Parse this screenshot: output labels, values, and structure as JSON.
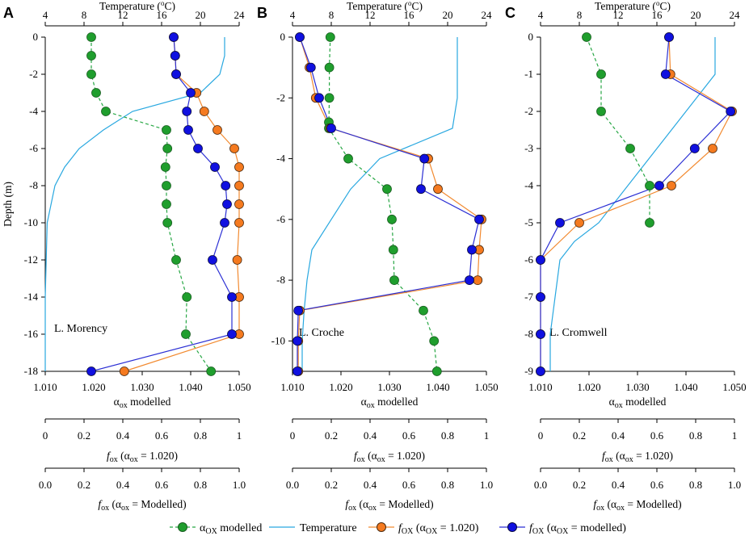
{
  "colors": {
    "alpha": "#1f9e2d",
    "alpha_line": "#28a745",
    "temperature": "#29a8e0",
    "fox020": "#f57a1f",
    "fox020_line": "#f28a30",
    "foxmod": "#1010e0",
    "foxmod_line": "#2b2fd4",
    "axis": "#000000"
  },
  "shared": {
    "ylabel": "Depth (m)",
    "top_axis_title": "Temperature (",
    "top_axis_unit_o": "o",
    "top_axis_unit_tail": "C)",
    "temp_ticks": [
      "4",
      "8",
      "12",
      "16",
      "20",
      "24"
    ],
    "alpha_ticks": [
      "1.010",
      "1.020",
      "1.030",
      "1.040",
      "1.050"
    ],
    "alpha_axis_title": "α",
    "alpha_axis_sub": "ox",
    "alpha_axis_tail": " modelled",
    "fox020_ticks": [
      "0",
      "0.2",
      "0.4",
      "0.6",
      "0.8",
      "1"
    ],
    "fox020_title_f": "f",
    "fox020_title_sub": "ox",
    "fox020_title_tail_a": " (α",
    "fox020_title_tail_sub": "ox",
    "fox020_title_tail_b": " = 1.020)",
    "foxmod_ticks": [
      "0.0",
      "0.2",
      "0.4",
      "0.6",
      "0.8",
      "1.0"
    ],
    "foxmod_title_f": "f",
    "foxmod_title_sub": "ox",
    "foxmod_title_tail_a": " (α",
    "foxmod_title_tail_sub": "ox",
    "foxmod_title_tail_b": " = Modelled)"
  },
  "legend": {
    "alpha": {
      "main": "α",
      "sub": "OX",
      "tail": " modelled"
    },
    "temperature": {
      "main": "Temperature"
    },
    "fox020": {
      "f": "f",
      "sub": "OX",
      "tail_a": " (α",
      "tail_sub": "OX",
      "tail_b": " = 1.020)"
    },
    "foxmod": {
      "f": "f",
      "sub": "OX",
      "tail_a": " (α",
      "tail_sub": "OX",
      "tail_b": " = modelled)"
    }
  },
  "chart_data": [
    {
      "panel": "A",
      "lake": "L. Morency",
      "type": "line",
      "ylim": [
        -18,
        0
      ],
      "yticks": [
        0,
        -2,
        -4,
        -6,
        -8,
        -10,
        -12,
        -14,
        -16,
        -18
      ],
      "ytick_labels": [
        "0",
        "-2",
        "-4",
        "-6",
        "-8",
        "-10",
        "-12",
        "-14",
        "-16",
        "-18"
      ],
      "xlim_alpha": [
        1.01,
        1.05
      ],
      "xlim_temp": [
        4,
        24
      ],
      "series": [
        {
          "name": "α_ox modelled",
          "x": [
            1.0195,
            1.0195,
            1.0195,
            1.0205,
            1.0225,
            1.035,
            1.0352,
            1.0348,
            1.035,
            1.035,
            1.0352,
            1.037,
            1.0392,
            1.039,
            1.0442
          ],
          "depth": [
            0,
            -1,
            -2,
            -3,
            -4,
            -5,
            -6,
            -7,
            -8,
            -9,
            -10,
            -12,
            -14,
            -16,
            -18
          ]
        },
        {
          "name": "Temperature",
          "x": [
            22.5,
            22.5,
            22.0,
            20.0,
            13.0,
            10.0,
            7.5,
            6.0,
            5.0,
            4.2,
            4.0,
            4.0
          ],
          "depth": [
            0,
            -1,
            -2,
            -3,
            -4,
            -5,
            -6,
            -7,
            -8,
            -10,
            -14,
            -18
          ]
        },
        {
          "name": "f_ox (α_ox = 1.020)",
          "x": [
            1.0365,
            1.0368,
            1.037,
            1.0412,
            1.0428,
            1.0455,
            1.049,
            1.05,
            1.05,
            1.05,
            1.05,
            1.0496,
            1.05,
            1.05,
            1.0263
          ],
          "depth": [
            0,
            -1,
            -2,
            -3,
            -4,
            -5,
            -6,
            -7,
            -8,
            -9,
            -10,
            -12,
            -14,
            -16,
            -18
          ]
        },
        {
          "name": "f_ox (α_ox = modelled)",
          "x": [
            1.0365,
            1.0368,
            1.037,
            1.04,
            1.0392,
            1.0395,
            1.0415,
            1.045,
            1.0472,
            1.0475,
            1.047,
            1.0445,
            1.0485,
            1.0485,
            1.0195
          ],
          "depth": [
            0,
            -1,
            -2,
            -3,
            -4,
            -5,
            -6,
            -7,
            -8,
            -9,
            -10,
            -12,
            -14,
            -16,
            -18
          ]
        }
      ]
    },
    {
      "panel": "B",
      "lake": "L. Croche",
      "type": "line",
      "ylim": [
        -11,
        0
      ],
      "yticks": [
        0,
        -2,
        -4,
        -6,
        -8,
        -10
      ],
      "ytick_labels": [
        "0",
        "-2",
        "-4",
        "-6",
        "-8",
        "-10"
      ],
      "xlim_alpha": [
        1.01,
        1.05
      ],
      "xlim_temp": [
        4,
        24
      ],
      "series": [
        {
          "name": "α_ox modelled",
          "x": [
            1.0178,
            1.0176,
            1.0176,
            1.0175,
            1.0175,
            1.0215,
            1.0295,
            1.0305,
            1.0308,
            1.031,
            1.037,
            1.0392,
            1.0398
          ],
          "depth": [
            0,
            -1,
            -2,
            -2.8,
            -3,
            -4,
            -5,
            -6,
            -7,
            -8,
            -9,
            -10,
            -11
          ]
        },
        {
          "name": "Temperature",
          "x": [
            21.0,
            21.0,
            21.0,
            20.5,
            13.0,
            10.0,
            8.0,
            6.0,
            5.5,
            5.2,
            5.0,
            5.0
          ],
          "depth": [
            0,
            -1,
            -2,
            -3,
            -4,
            -5,
            -6,
            -7,
            -8,
            -9,
            -10,
            -11
          ]
        },
        {
          "name": "f_ox (α_ox = 1.020)",
          "x": [
            1.0115,
            1.0135,
            1.0148,
            1.0178,
            1.038,
            1.04,
            1.049,
            1.0485,
            1.0482,
            1.0115,
            1.0112,
            1.0112
          ],
          "depth": [
            0,
            -1,
            -2,
            -3,
            -4,
            -5,
            -6,
            -7,
            -8,
            -9,
            -10,
            -11
          ]
        },
        {
          "name": "f_ox (α_ox = modelled)",
          "x": [
            1.0115,
            1.0138,
            1.0155,
            1.018,
            1.0372,
            1.0365,
            1.0485,
            1.047,
            1.0465,
            1.0112,
            1.011,
            1.011
          ],
          "depth": [
            0,
            -1,
            -2,
            -3,
            -4,
            -5,
            -6,
            -7,
            -8,
            -9,
            -10,
            -11
          ]
        }
      ]
    },
    {
      "panel": "C",
      "lake": "L. Cromwell",
      "type": "line",
      "ylim": [
        -9,
        0
      ],
      "yticks": [
        0,
        -1,
        -2,
        -3,
        -4,
        -5,
        -6,
        -7,
        -8,
        -9
      ],
      "ytick_labels": [
        "0",
        "-1",
        "-2",
        "-3",
        "-4",
        "-5",
        "-6",
        "-7",
        "-8",
        "-9"
      ],
      "xlim_alpha": [
        1.01,
        1.05
      ],
      "xlim_temp": [
        4,
        24
      ],
      "series": [
        {
          "name": "α_ox modelled",
          "x": [
            1.0195,
            1.0225,
            1.0225,
            1.0285,
            1.0325,
            1.0325
          ],
          "depth": [
            0,
            -1,
            -2,
            -3,
            -4,
            -5
          ]
        },
        {
          "name": "Temperature",
          "x": [
            22.0,
            22.0,
            22.0,
            19.0,
            16.0,
            13.0,
            10.0,
            7.5,
            6.0,
            5.5,
            5.0,
            5.0
          ],
          "depth": [
            0,
            -0.5,
            -1,
            -2,
            -3,
            -4,
            -5,
            -5.5,
            -6,
            -7,
            -8,
            -9
          ]
        },
        {
          "name": "f_ox (α_ox = 1.020)",
          "x": [
            1.0365,
            1.0368,
            1.0495,
            1.0455,
            1.037,
            1.018,
            1.01,
            1.01,
            1.01,
            1.01
          ],
          "depth": [
            0,
            -1,
            -2,
            -3,
            -4,
            -5,
            -6,
            -7,
            -8,
            -9
          ]
        },
        {
          "name": "f_ox (α_ox = modelled)",
          "x": [
            1.0365,
            1.0358,
            1.0492,
            1.0418,
            1.0345,
            1.014,
            1.01,
            1.01,
            1.01,
            1.01
          ],
          "depth": [
            0,
            -1,
            -2,
            -3,
            -4,
            -5,
            -6,
            -7,
            -8,
            -9
          ]
        }
      ]
    }
  ]
}
